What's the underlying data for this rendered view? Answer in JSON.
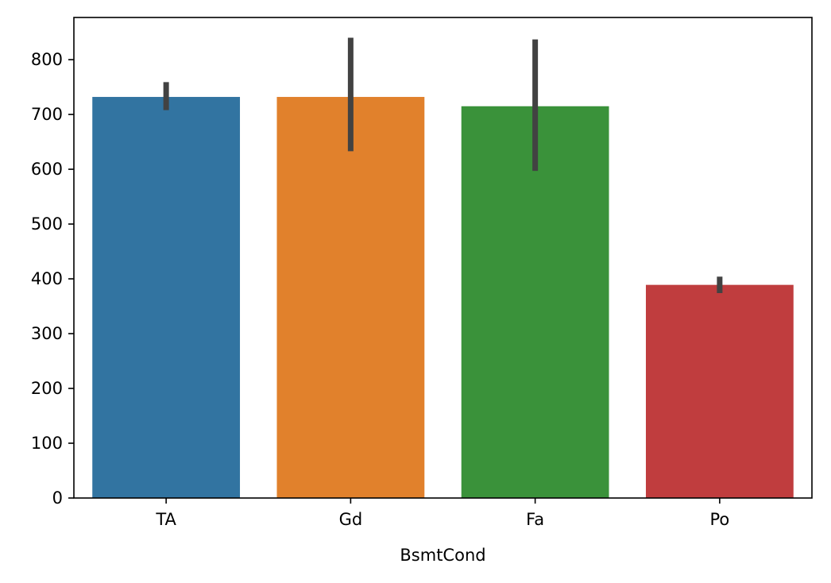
{
  "chart_data": {
    "type": "bar",
    "title": "",
    "xlabel": "BsmtCond",
    "ylabel": "",
    "categories": [
      "TA",
      "Gd",
      "Fa",
      "Po"
    ],
    "values": [
      732,
      732,
      715,
      389
    ],
    "error_bars": [
      {
        "low": 708,
        "high": 759
      },
      {
        "low": 633,
        "high": 840
      },
      {
        "low": 597,
        "high": 837
      },
      {
        "low": 374,
        "high": 404
      }
    ],
    "colors": [
      "#3274a1",
      "#e1812c",
      "#3a923a",
      "#c03d3e"
    ],
    "error_color": "#424242",
    "ylim": [
      0,
      877
    ],
    "yticks": [
      0,
      100,
      200,
      300,
      400,
      500,
      600,
      700,
      800
    ],
    "grid": false,
    "legend": "none"
  }
}
